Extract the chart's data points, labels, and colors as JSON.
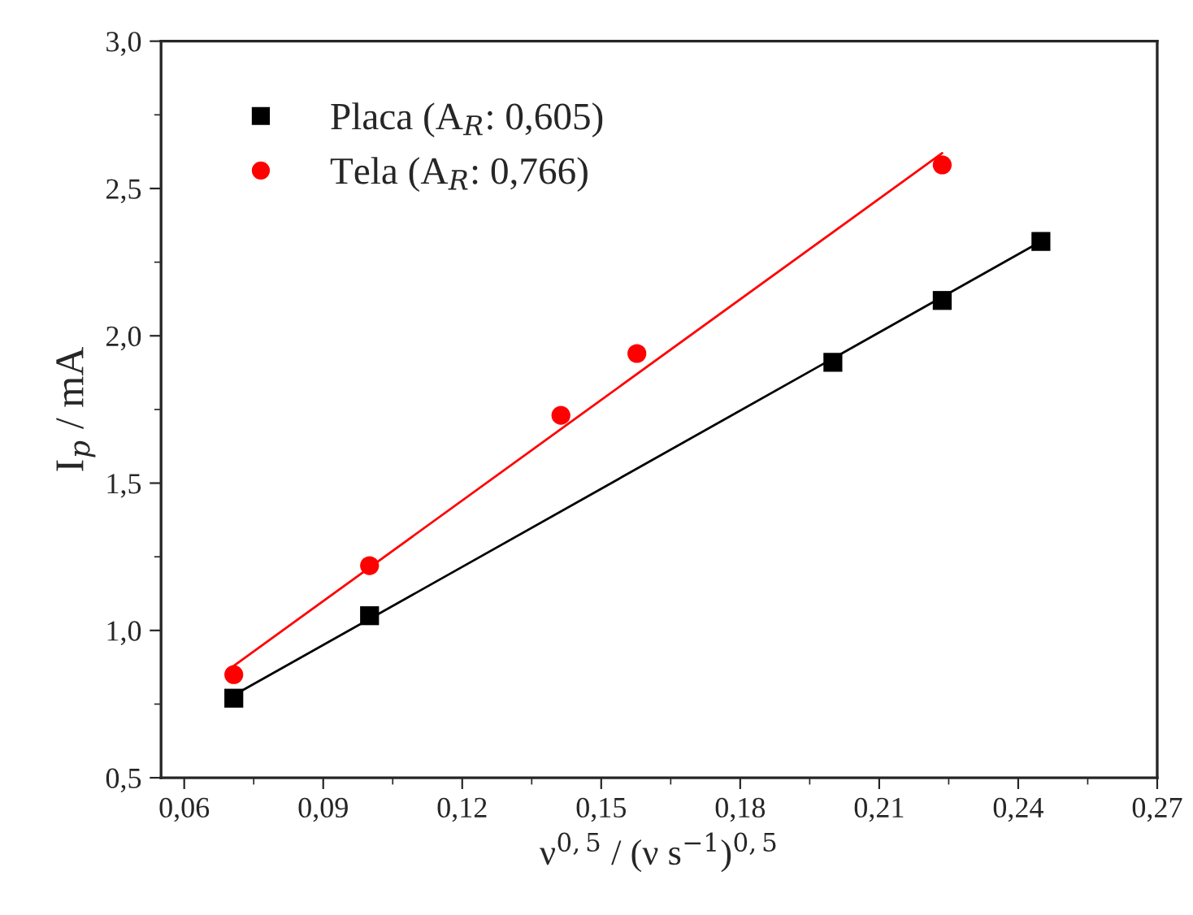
{
  "chart_data": {
    "type": "scatter",
    "xlabel": "ν$^{0,5}$ / (ν s$^{−1}$)$^{0,5}$",
    "ylabel": "I$_{p}$ / mA",
    "series": [
      {
        "name": "Placa (A$_{R}$: 0,605)",
        "color": "#000000",
        "marker": "square",
        "x": [
          0.0707,
          0.1,
          0.2,
          0.2236,
          0.2449
        ],
        "values": [
          0.77,
          1.05,
          1.91,
          2.12,
          2.32
        ]
      },
      {
        "name": "Tela (A$_{R}$: 0,766)",
        "color": "#ff0000",
        "marker": "circle",
        "x": [
          0.0707,
          0.1,
          0.1413,
          0.1577,
          0.2236
        ],
        "values": [
          0.85,
          1.22,
          1.73,
          1.94,
          2.58
        ]
      },
      {
        "type": "line",
        "color": "#000000",
        "marker": "none",
        "x": [
          0.0707,
          0.2449
        ],
        "values": [
          0.78,
          2.32
        ]
      },
      {
        "type": "line",
        "color": "#ff0000",
        "marker": "none",
        "x": [
          0.0707,
          0.2236
        ],
        "values": [
          0.88,
          2.62
        ]
      }
    ],
    "xlim": [
      0.055,
      0.27
    ],
    "xticks": [
      {
        "value": 0.06,
        "label": "0,06"
      },
      {
        "value": 0.09,
        "label": "0,09"
      },
      {
        "value": 0.12,
        "label": "0,12"
      },
      {
        "value": 0.15,
        "label": "0,15"
      },
      {
        "value": 0.18,
        "label": "0,18"
      },
      {
        "value": 0.21,
        "label": "0,21"
      },
      {
        "value": 0.24,
        "label": "0,24"
      },
      {
        "value": 0.27,
        "label": "0,27"
      }
    ],
    "ylim": [
      0.5,
      3.0
    ],
    "yticks": [
      {
        "value": 0.5,
        "label": "0,5"
      },
      {
        "value": 1.0,
        "label": "1,0"
      },
      {
        "value": 1.5,
        "label": "1,5"
      },
      {
        "value": 2.0,
        "label": "2,0"
      },
      {
        "value": 2.5,
        "label": "2,5"
      },
      {
        "value": 3.0,
        "label": "3,0"
      }
    ],
    "grid": false,
    "legend": "top left"
  }
}
